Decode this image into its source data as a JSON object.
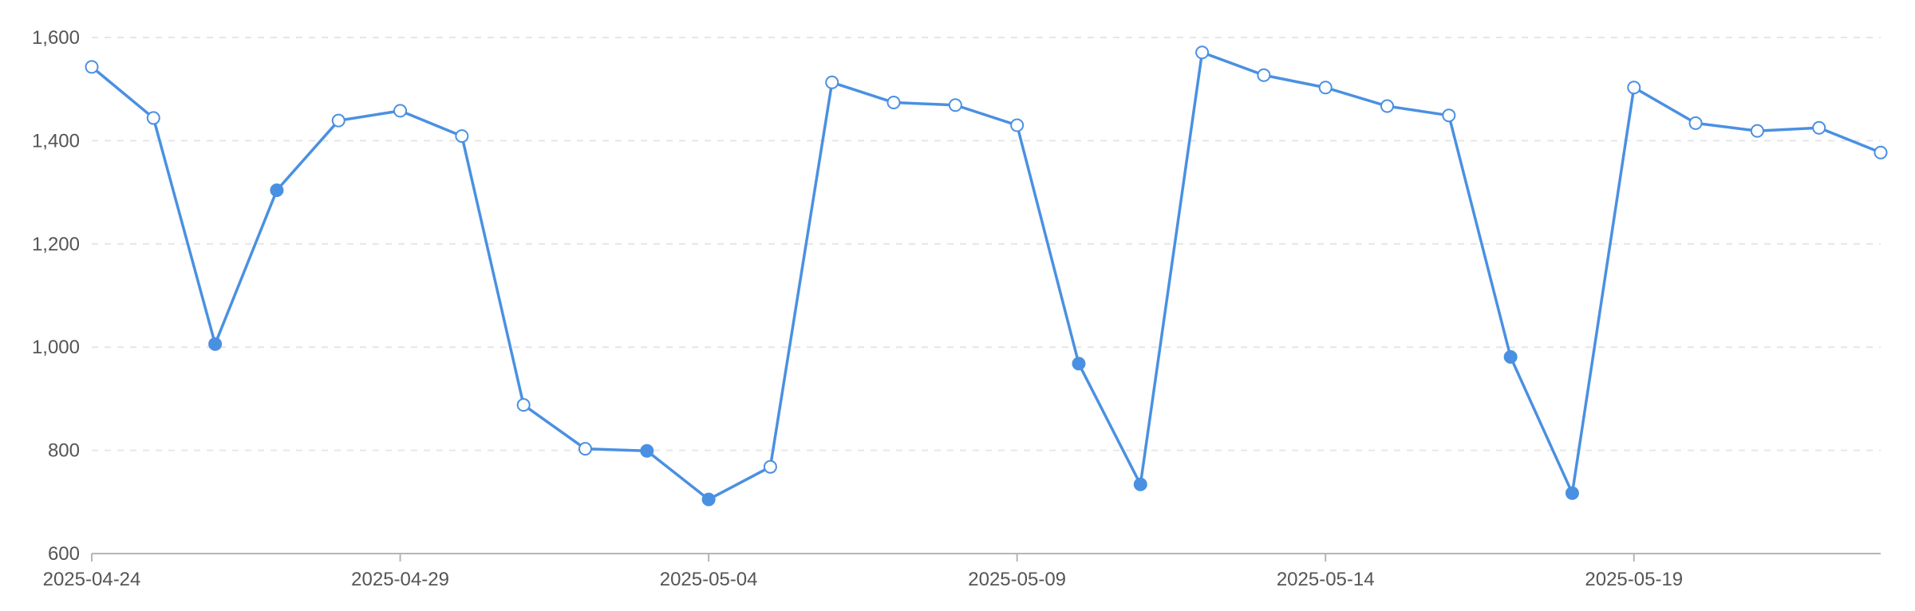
{
  "chart_data": {
    "type": "line",
    "title": "",
    "xlabel": "",
    "ylabel": "",
    "ylim": [
      600,
      1600
    ],
    "y_ticks": [
      "600",
      "800",
      "1,000",
      "1,200",
      "1,400",
      "1,600"
    ],
    "y_tick_values": [
      600,
      800,
      1000,
      1200,
      1400,
      1600
    ],
    "x_ticks": [
      "2025-04-24",
      "2025-04-29",
      "2025-05-04",
      "2025-05-09",
      "2025-05-14",
      "2025-05-19"
    ],
    "grid": "horizontal dashed",
    "x": [
      "2025-04-24",
      "2025-04-25",
      "2025-04-26",
      "2025-04-27",
      "2025-04-28",
      "2025-04-29",
      "2025-04-30",
      "2025-05-01",
      "2025-05-02",
      "2025-05-03",
      "2025-05-04",
      "2025-05-05",
      "2025-05-06",
      "2025-05-07",
      "2025-05-08",
      "2025-05-09",
      "2025-05-10",
      "2025-05-11",
      "2025-05-12",
      "2025-05-13",
      "2025-05-14",
      "2025-05-15",
      "2025-05-16",
      "2025-05-17",
      "2025-05-18",
      "2025-05-19",
      "2025-05-20",
      "2025-05-21",
      "2025-05-22",
      "2025-05-23"
    ],
    "series": [
      {
        "color": "#4a90e2",
        "values": [
          1543,
          1444,
          1006,
          1304,
          1439,
          1458,
          1409,
          888,
          803,
          799,
          705,
          768,
          1513,
          1474,
          1469,
          1430,
          968,
          734,
          1571,
          1527,
          1503,
          1467,
          1449,
          981,
          717,
          1503,
          1434,
          1419,
          1425,
          1377
        ],
        "marker_filled": [
          false,
          false,
          true,
          true,
          false,
          false,
          false,
          false,
          false,
          true,
          true,
          false,
          false,
          false,
          false,
          false,
          true,
          true,
          false,
          false,
          false,
          false,
          false,
          true,
          true,
          false,
          false,
          false,
          false,
          false
        ]
      }
    ]
  }
}
